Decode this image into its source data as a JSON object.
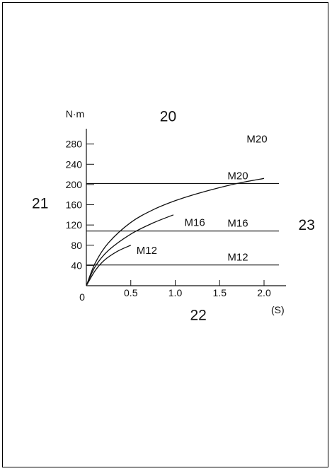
{
  "chart_data": {
    "type": "line",
    "ylabel": "N·m",
    "xlabel": "(S)",
    "origin_label": "0",
    "xlim": [
      0,
      2.2
    ],
    "ylim": [
      0,
      300
    ],
    "x_ticks": [
      "0.5",
      "1.0",
      "1.5",
      "2.0"
    ],
    "x_tick_values": [
      0.5,
      1.0,
      1.5,
      2.0
    ],
    "y_ticks": [
      "40",
      "80",
      "120",
      "160",
      "200",
      "240",
      "280"
    ],
    "y_tick_values": [
      40,
      80,
      120,
      160,
      200,
      240,
      280
    ],
    "series": [
      {
        "name": "M20",
        "x": [
          0,
          0.1,
          0.25,
          0.5,
          0.75,
          1.0,
          1.25,
          1.5,
          1.75,
          2.0
        ],
        "y": [
          0,
          45,
          85,
          125,
          150,
          168,
          182,
          194,
          204,
          212
        ]
      },
      {
        "name": "M16",
        "x": [
          0,
          0.1,
          0.25,
          0.5,
          0.75,
          0.98
        ],
        "y": [
          0,
          38,
          70,
          102,
          124,
          140
        ]
      },
      {
        "name": "M12",
        "x": [
          0,
          0.1,
          0.2,
          0.35,
          0.5
        ],
        "y": [
          0,
          30,
          50,
          68,
          80
        ]
      }
    ],
    "reference_lines": [
      {
        "label": "M20",
        "y": 202
      },
      {
        "label": "M16",
        "y": 108
      },
      {
        "label": "M12",
        "y": 41
      }
    ],
    "curve_labels": [
      {
        "text": "M20",
        "x": 1.92,
        "y": 290
      },
      {
        "text": "M16",
        "x": 1.22,
        "y": 125
      },
      {
        "text": "M12",
        "x": 0.68,
        "y": 70
      }
    ],
    "annotations": [
      {
        "text": "20",
        "x": 0.92,
        "y": 335
      },
      {
        "text": "21",
        "x": -0.52,
        "y": 163
      },
      {
        "text": "22",
        "x": 1.26,
        "y": -58
      },
      {
        "text": "23",
        "x": 2.48,
        "y": 120
      }
    ]
  },
  "colors": {
    "line": "#111111",
    "background": "#ffffff"
  }
}
